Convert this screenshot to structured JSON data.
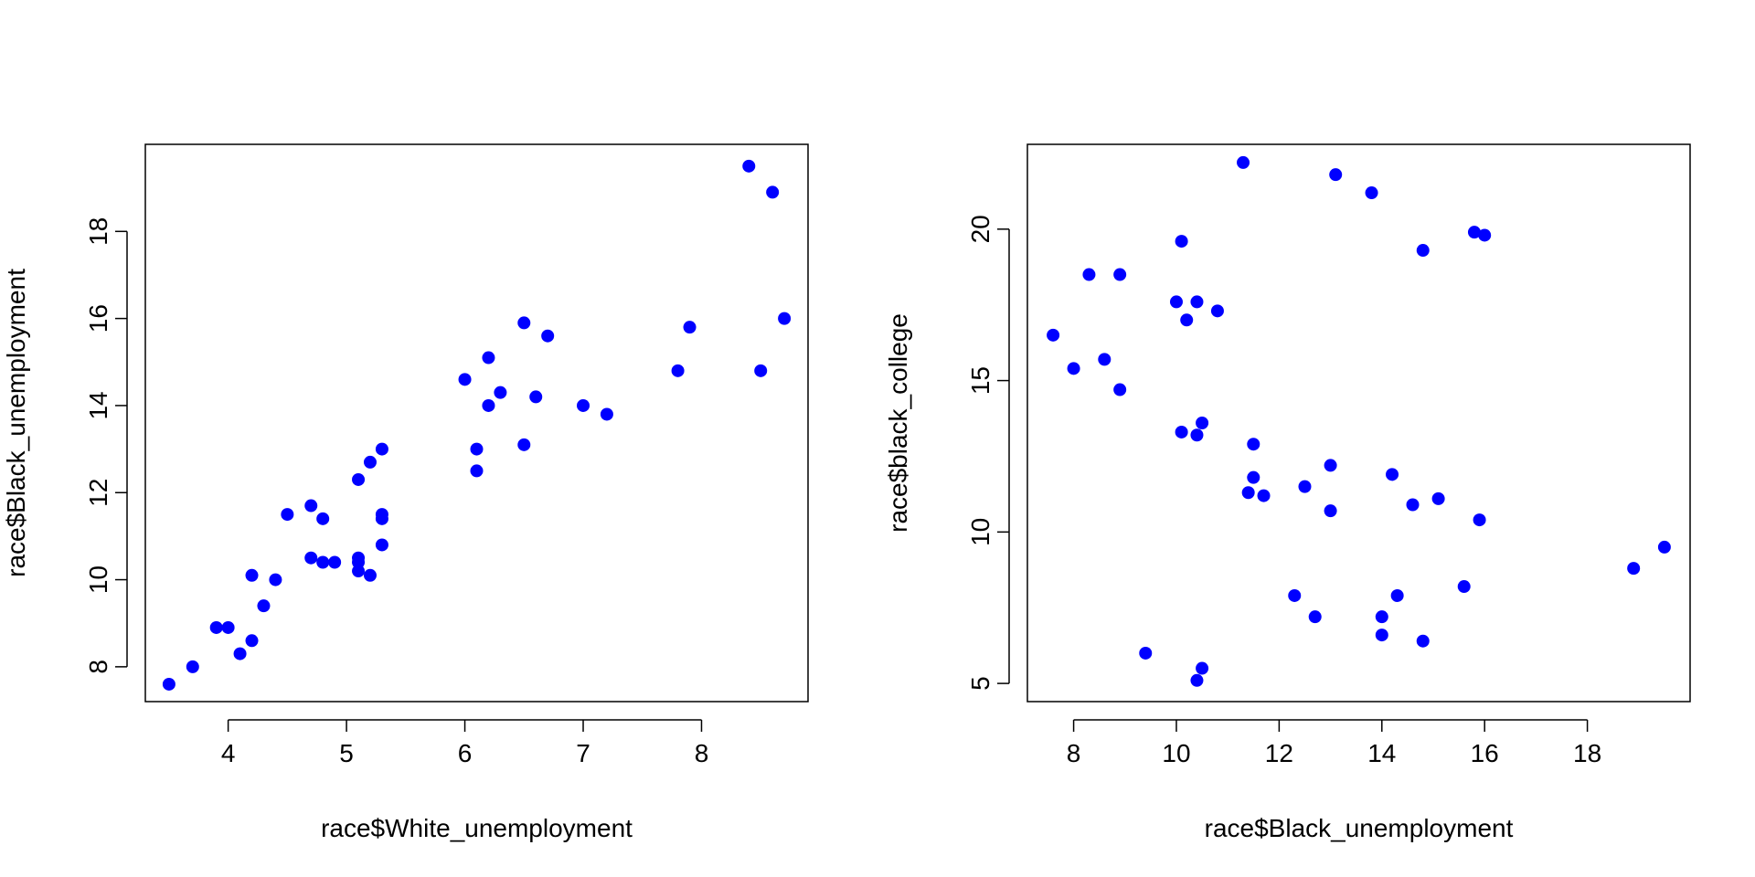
{
  "colors": {
    "points": "#0000ff",
    "axis": "#000000",
    "background": "#ffffff"
  },
  "chart_data": [
    {
      "type": "scatter",
      "title": "",
      "xlabel": "race$White_unemployment",
      "ylabel": "race$Black_unemployment",
      "xlim": [
        3.3,
        8.9
      ],
      "ylim": [
        7.2,
        20.0
      ],
      "x_ticks": [
        4,
        5,
        6,
        7,
        8
      ],
      "y_ticks": [
        8,
        10,
        12,
        14,
        16,
        18
      ],
      "grid": false,
      "points": [
        {
          "x": 3.5,
          "y": 7.6
        },
        {
          "x": 3.7,
          "y": 8.0
        },
        {
          "x": 3.9,
          "y": 8.9
        },
        {
          "x": 4.0,
          "y": 8.9
        },
        {
          "x": 4.1,
          "y": 8.3
        },
        {
          "x": 4.2,
          "y": 8.6
        },
        {
          "x": 4.2,
          "y": 10.1
        },
        {
          "x": 4.3,
          "y": 9.4
        },
        {
          "x": 4.4,
          "y": 10.0
        },
        {
          "x": 4.5,
          "y": 11.5
        },
        {
          "x": 4.7,
          "y": 11.7
        },
        {
          "x": 4.7,
          "y": 10.5
        },
        {
          "x": 4.8,
          "y": 11.4
        },
        {
          "x": 4.8,
          "y": 10.4
        },
        {
          "x": 4.9,
          "y": 10.4
        },
        {
          "x": 5.1,
          "y": 12.3
        },
        {
          "x": 5.1,
          "y": 10.5
        },
        {
          "x": 5.1,
          "y": 10.4
        },
        {
          "x": 5.1,
          "y": 10.2
        },
        {
          "x": 5.2,
          "y": 12.7
        },
        {
          "x": 5.2,
          "y": 10.1
        },
        {
          "x": 5.3,
          "y": 13.0
        },
        {
          "x": 5.3,
          "y": 11.5
        },
        {
          "x": 5.3,
          "y": 11.4
        },
        {
          "x": 5.3,
          "y": 10.8
        },
        {
          "x": 6.0,
          "y": 14.6
        },
        {
          "x": 6.1,
          "y": 13.0
        },
        {
          "x": 6.1,
          "y": 12.5
        },
        {
          "x": 6.2,
          "y": 15.1
        },
        {
          "x": 6.2,
          "y": 14.0
        },
        {
          "x": 6.3,
          "y": 14.3
        },
        {
          "x": 6.5,
          "y": 15.9
        },
        {
          "x": 6.5,
          "y": 13.1
        },
        {
          "x": 6.6,
          "y": 14.2
        },
        {
          "x": 6.7,
          "y": 15.6
        },
        {
          "x": 7.0,
          "y": 14.0
        },
        {
          "x": 7.2,
          "y": 13.8
        },
        {
          "x": 7.8,
          "y": 14.8
        },
        {
          "x": 7.9,
          "y": 15.8
        },
        {
          "x": 8.4,
          "y": 19.5
        },
        {
          "x": 8.5,
          "y": 14.8
        },
        {
          "x": 8.6,
          "y": 18.9
        },
        {
          "x": 8.7,
          "y": 16.0
        }
      ]
    },
    {
      "type": "scatter",
      "title": "",
      "xlabel": "race$Black_unemployment",
      "ylabel": "race$black_college",
      "xlim": [
        7.1,
        20.0
      ],
      "ylim": [
        4.4,
        22.8
      ],
      "x_ticks": [
        8,
        10,
        12,
        14,
        16,
        18
      ],
      "y_ticks": [
        5,
        10,
        15,
        20
      ],
      "grid": false,
      "points": [
        {
          "x": 7.6,
          "y": 16.5
        },
        {
          "x": 8.0,
          "y": 15.4
        },
        {
          "x": 8.3,
          "y": 18.5
        },
        {
          "x": 8.6,
          "y": 15.7
        },
        {
          "x": 8.9,
          "y": 18.5
        },
        {
          "x": 8.9,
          "y": 14.7
        },
        {
          "x": 9.4,
          "y": 6.0
        },
        {
          "x": 10.0,
          "y": 17.6
        },
        {
          "x": 10.1,
          "y": 13.3
        },
        {
          "x": 10.1,
          "y": 19.6
        },
        {
          "x": 10.2,
          "y": 17.0
        },
        {
          "x": 10.4,
          "y": 17.6
        },
        {
          "x": 10.4,
          "y": 13.2
        },
        {
          "x": 10.4,
          "y": 5.1
        },
        {
          "x": 10.5,
          "y": 13.6
        },
        {
          "x": 10.5,
          "y": 5.5
        },
        {
          "x": 10.8,
          "y": 17.3
        },
        {
          "x": 11.3,
          "y": 22.2
        },
        {
          "x": 11.4,
          "y": 11.3
        },
        {
          "x": 11.5,
          "y": 12.9
        },
        {
          "x": 11.5,
          "y": 11.8
        },
        {
          "x": 11.7,
          "y": 11.2
        },
        {
          "x": 12.3,
          "y": 7.9
        },
        {
          "x": 12.5,
          "y": 11.5
        },
        {
          "x": 12.7,
          "y": 7.2
        },
        {
          "x": 13.0,
          "y": 12.2
        },
        {
          "x": 13.0,
          "y": 10.7
        },
        {
          "x": 13.1,
          "y": 21.8
        },
        {
          "x": 13.8,
          "y": 21.2
        },
        {
          "x": 14.0,
          "y": 6.6
        },
        {
          "x": 14.0,
          "y": 7.2
        },
        {
          "x": 14.2,
          "y": 11.9
        },
        {
          "x": 14.3,
          "y": 7.9
        },
        {
          "x": 14.6,
          "y": 10.9
        },
        {
          "x": 14.8,
          "y": 19.3
        },
        {
          "x": 14.8,
          "y": 6.4
        },
        {
          "x": 15.1,
          "y": 11.1
        },
        {
          "x": 15.6,
          "y": 8.2
        },
        {
          "x": 15.8,
          "y": 19.9
        },
        {
          "x": 15.9,
          "y": 10.4
        },
        {
          "x": 16.0,
          "y": 19.8
        },
        {
          "x": 18.9,
          "y": 8.8
        },
        {
          "x": 19.5,
          "y": 9.5
        }
      ]
    }
  ]
}
